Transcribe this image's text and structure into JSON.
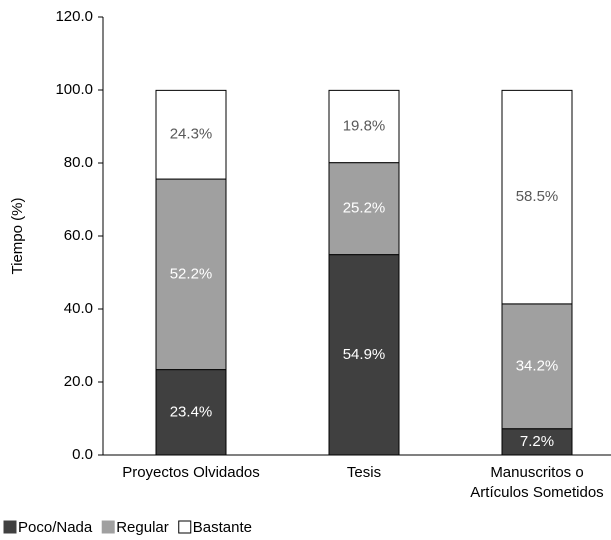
{
  "chart_data": {
    "type": "stacked_bar",
    "ylabel": "Tiempo (%)",
    "categories": [
      "Proyectos Olvidados",
      "Tesis",
      "Manuscritos o\nArtículos Sometidos"
    ],
    "series": [
      {
        "name": "Poco/Nada",
        "color": "#404040",
        "label_color": "#ffffff",
        "values": [
          23.4,
          54.9,
          7.2
        ],
        "value_labels": [
          "23.4%",
          "54.9%",
          "7.2%"
        ]
      },
      {
        "name": "Regular",
        "color": "#a0a0a0",
        "label_color": "#ffffff",
        "values": [
          52.2,
          25.2,
          34.2
        ],
        "value_labels": [
          "52.2%",
          "25.2%",
          "34.2%"
        ]
      },
      {
        "name": "Bastante",
        "color": "#ffffff",
        "label_color": "#595959",
        "values": [
          24.3,
          19.8,
          58.5
        ],
        "value_labels": [
          "24.3%",
          "19.8%",
          "58.5%"
        ]
      }
    ],
    "ylim": [
      0,
      120
    ],
    "yticks": [
      {
        "value": 0,
        "label": "0.0"
      },
      {
        "value": 20,
        "label": "20.0"
      },
      {
        "value": 40,
        "label": "40.0"
      },
      {
        "value": 60,
        "label": "60.0"
      },
      {
        "value": 80,
        "label": "80.0"
      },
      {
        "value": 100,
        "label": "100.0"
      },
      {
        "value": 120,
        "label": "120.0"
      }
    ],
    "grid": false,
    "legend": "bottom-left"
  }
}
